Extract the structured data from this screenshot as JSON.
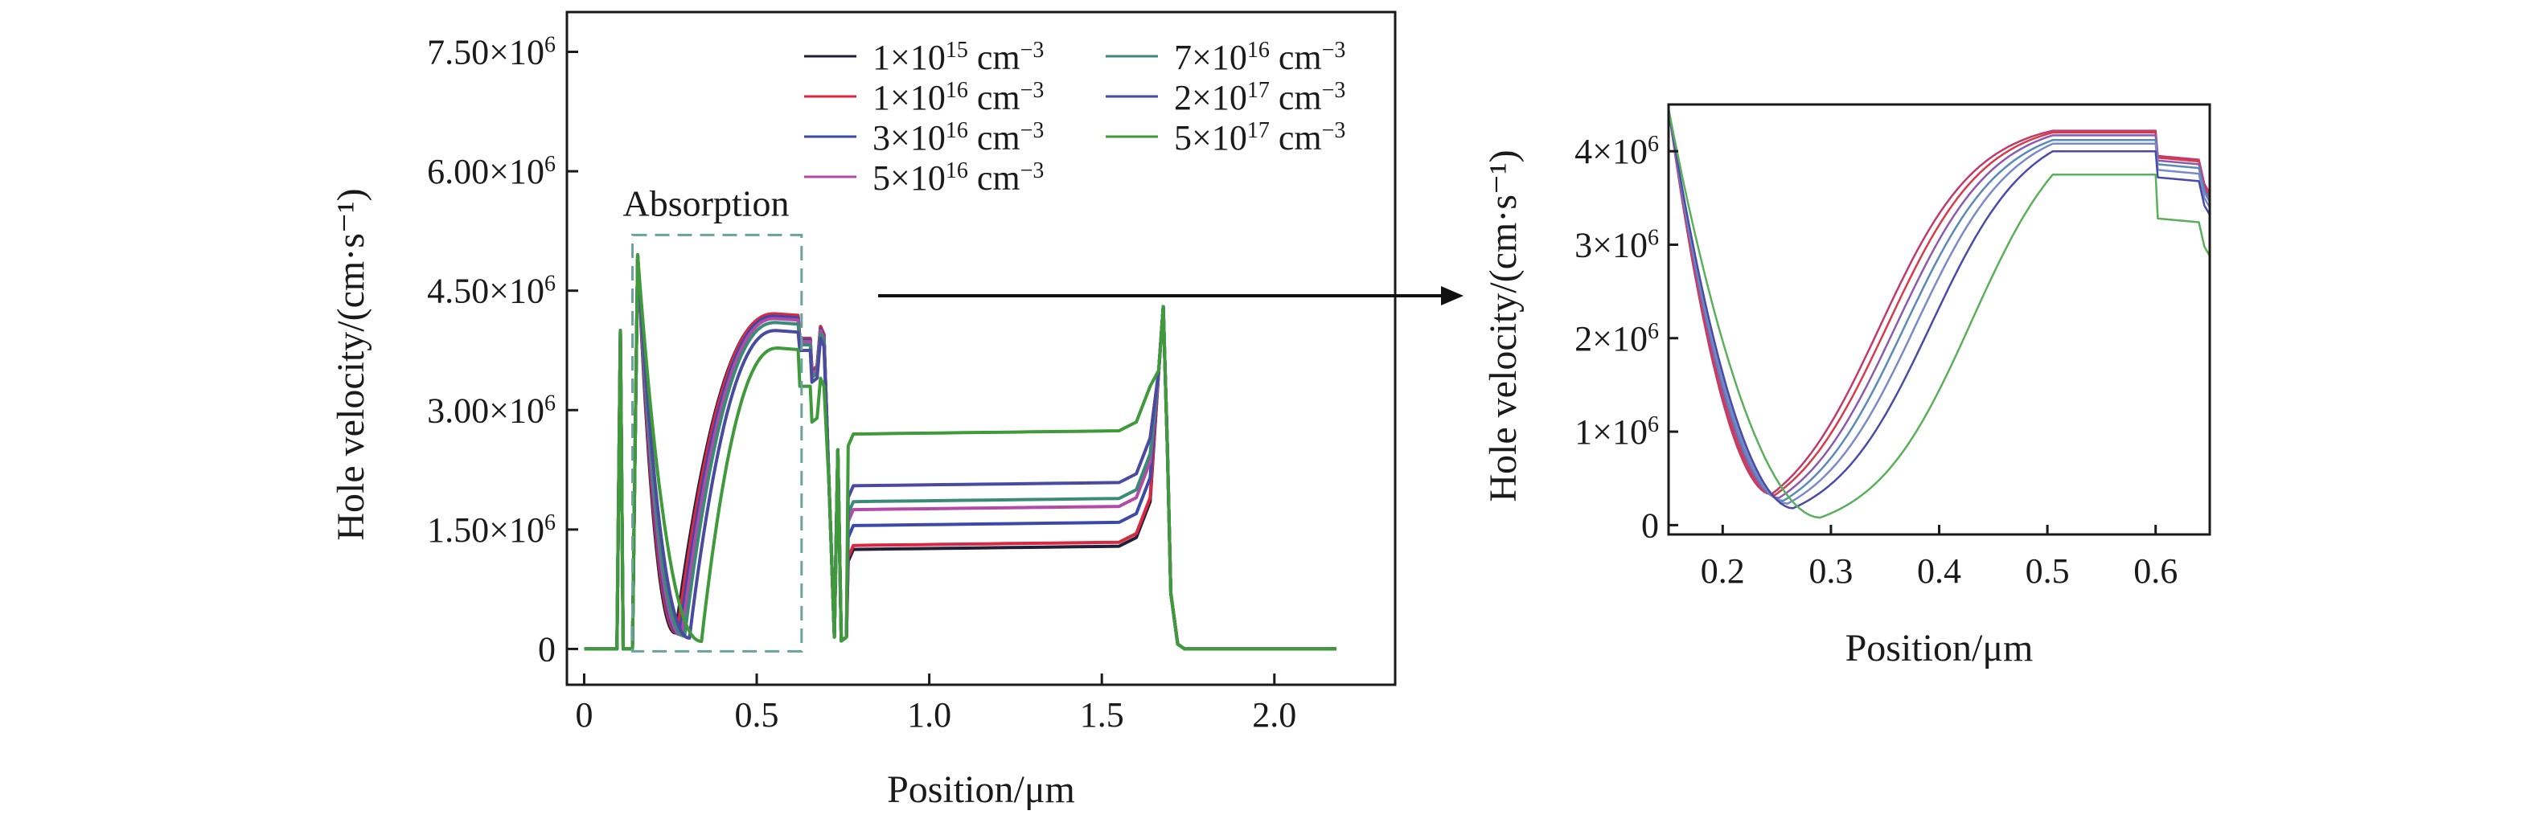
{
  "chart_data": [
    {
      "type": "line",
      "xlabel": "Position/μm",
      "ylabel": "Hole velocity/(cm·s⁻¹)",
      "xlim": [
        -0.05,
        2.35
      ],
      "ylim": [
        -450000,
        8000000
      ],
      "xticks": [
        0,
        0.5,
        1.0,
        1.5,
        2.0
      ],
      "xtick_labels": [
        "0",
        "0.5",
        "1.0",
        "1.5",
        "2.0"
      ],
      "yticks": [
        0,
        1500000,
        3000000,
        4500000,
        6000000,
        7500000
      ],
      "ytick_labels": [
        {
          "mant": "0",
          "exp": ""
        },
        {
          "mant": "1.50×10",
          "exp": "6"
        },
        {
          "mant": "3.00×10",
          "exp": "6"
        },
        {
          "mant": "4.50×10",
          "exp": "6"
        },
        {
          "mant": "6.00×10",
          "exp": "6"
        },
        {
          "mant": "7.50×10",
          "exp": "6"
        }
      ],
      "legend_position": "top-right",
      "legend_columns": 2,
      "annotation": {
        "text": "Absorption",
        "x_range": [
          0.14,
          0.63
        ],
        "y_range": [
          -30000,
          5200000
        ],
        "color": "#6aa39a"
      },
      "series": [
        {
          "name": {
            "mant": "1×10",
            "exp": "15",
            "unit": " cm",
            "uexp": "−3"
          },
          "color": "#1f1f3a",
          "plateau": 1250000,
          "dip_scale": 1.0,
          "shift": 0.0,
          "peak": 4200000,
          "step1": 3900000,
          "step2": 3650000
        },
        {
          "name": {
            "mant": "1×10",
            "exp": "16",
            "unit": " cm",
            "uexp": "−3"
          },
          "color": "#d92840",
          "plateau": 1300000,
          "dip_scale": 1.0,
          "shift": 0.005,
          "peak": 4210000,
          "step1": 3900000,
          "step2": 3650000
        },
        {
          "name": {
            "mant": "3×10",
            "exp": "16",
            "unit": " cm",
            "uexp": "−3"
          },
          "color": "#3b4aa8",
          "plateau": 1550000,
          "dip_scale": 1.05,
          "shift": 0.012,
          "peak": 4180000,
          "step1": 3880000,
          "step2": 3620000
        },
        {
          "name": {
            "mant": "5×10",
            "exp": "16",
            "unit": " cm",
            "uexp": "−3"
          },
          "color": "#b44aa8",
          "plateau": 1750000,
          "dip_scale": 1.08,
          "shift": 0.018,
          "peak": 4150000,
          "step1": 3860000,
          "step2": 3600000
        },
        {
          "name": {
            "mant": "7×10",
            "exp": "16",
            "unit": " cm",
            "uexp": "−3"
          },
          "color": "#3a8a78",
          "plateau": 1850000,
          "dip_scale": 1.12,
          "shift": 0.026,
          "peak": 4100000,
          "step1": 3820000,
          "step2": 3560000
        },
        {
          "name": {
            "mant": "2×10",
            "exp": "17",
            "unit": " cm",
            "uexp": "−3"
          },
          "color": "#4a4aa0",
          "plateau": 2050000,
          "dip_scale": 1.2,
          "shift": 0.04,
          "peak": 4000000,
          "step1": 3750000,
          "step2": 3500000
        },
        {
          "name": {
            "mant": "5×10",
            "exp": "17",
            "unit": " cm",
            "uexp": "−3"
          },
          "color": "#3f9a3a",
          "plateau": 2700000,
          "dip_scale": 1.35,
          "shift": 0.075,
          "peak": 3780000,
          "step1": 3300000,
          "step2": 3000000
        }
      ]
    },
    {
      "type": "line",
      "xlabel": "Position/μm",
      "ylabel": "Hole velocity/(cm·s⁻¹)",
      "xlim": [
        0.15,
        0.65
      ],
      "ylim": [
        -100000,
        4500000
      ],
      "xticks": [
        0.2,
        0.3,
        0.4,
        0.5,
        0.6
      ],
      "xtick_labels": [
        "0.2",
        "0.3",
        "0.4",
        "0.5",
        "0.6"
      ],
      "yticks": [
        0,
        1000000,
        2000000,
        3000000,
        4000000
      ],
      "ytick_labels": [
        {
          "mant": "0",
          "exp": ""
        },
        {
          "mant": "1×10",
          "exp": "6"
        },
        {
          "mant": "2×10",
          "exp": "6"
        },
        {
          "mant": "3×10",
          "exp": "6"
        },
        {
          "mant": "4×10",
          "exp": "6"
        }
      ],
      "series": [
        {
          "color": "#c03a6a",
          "min": 330000,
          "xmin": 0.245,
          "rise_mid": 0.345,
          "peak": 4220000,
          "after": 3950000
        },
        {
          "color": "#d93a4a",
          "min": 320000,
          "xmin": 0.248,
          "rise_mid": 0.352,
          "peak": 4200000,
          "after": 3930000
        },
        {
          "color": "#8a5ab0",
          "min": 290000,
          "xmin": 0.252,
          "rise_mid": 0.36,
          "peak": 4170000,
          "after": 3900000
        },
        {
          "color": "#5a8ab8",
          "min": 260000,
          "xmin": 0.256,
          "rise_mid": 0.368,
          "peak": 4120000,
          "after": 3860000
        },
        {
          "color": "#7a8ac8",
          "min": 230000,
          "xmin": 0.26,
          "rise_mid": 0.378,
          "peak": 4080000,
          "after": 3800000
        },
        {
          "color": "#4a4aa8",
          "min": 180000,
          "xmin": 0.265,
          "rise_mid": 0.392,
          "peak": 4000000,
          "after": 3720000
        },
        {
          "color": "#5ab05a",
          "min": 80000,
          "xmin": 0.29,
          "rise_mid": 0.43,
          "peak": 3750000,
          "after": 3280000
        }
      ]
    }
  ]
}
